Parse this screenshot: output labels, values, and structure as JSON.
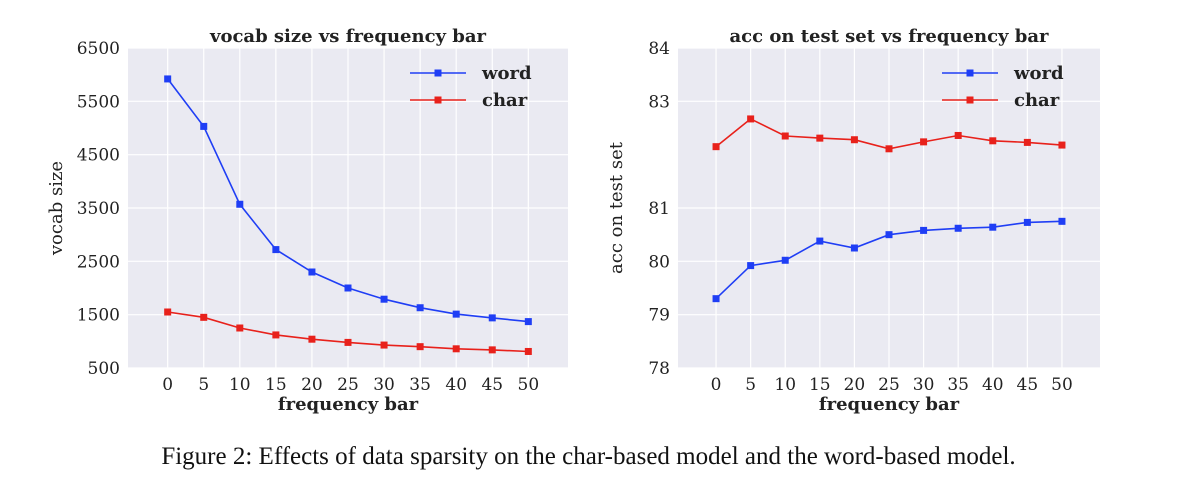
{
  "caption": "Figure 2: Effects of data sparsity on the char-based model and the word-based model.",
  "colors": {
    "word": "#1f3ef5",
    "char": "#e8211b",
    "plot_bg": "#eaeaf2",
    "grid": "#ffffff"
  },
  "chart_data": [
    {
      "type": "line",
      "title": "vocab size vs frequency bar",
      "xlabel": "frequency bar",
      "ylabel": "vocab size",
      "x": [
        0,
        5,
        10,
        15,
        20,
        25,
        30,
        35,
        40,
        45,
        50
      ],
      "xticks": [
        "0",
        "5",
        "10",
        "15",
        "20",
        "25",
        "30",
        "35",
        "40",
        "45",
        "50"
      ],
      "ylim": [
        500,
        6500
      ],
      "yticks": [
        500,
        1500,
        2500,
        3500,
        4500,
        5500,
        6500
      ],
      "ytick_labels": [
        "500",
        "1500",
        "2500",
        "3500",
        "4500",
        "5500",
        "6500"
      ],
      "grid": true,
      "legend": "top-right",
      "series": [
        {
          "name": "word",
          "color": "#1f3ef5",
          "values": [
            5920,
            5030,
            3570,
            2720,
            2300,
            2000,
            1790,
            1630,
            1510,
            1440,
            1370
          ]
        },
        {
          "name": "char",
          "color": "#e8211b",
          "values": [
            1550,
            1450,
            1250,
            1120,
            1040,
            980,
            930,
            900,
            860,
            840,
            810
          ]
        }
      ]
    },
    {
      "type": "line",
      "title": "acc on test set vs frequency bar",
      "xlabel": "frequency bar",
      "ylabel": "acc on test set",
      "x": [
        0,
        5,
        10,
        15,
        20,
        25,
        30,
        35,
        40,
        45,
        50
      ],
      "xticks": [
        "0",
        "5",
        "10",
        "15",
        "20",
        "25",
        "30",
        "35",
        "40",
        "45",
        "50"
      ],
      "ylim": [
        78,
        84
      ],
      "yticks": [
        78,
        79,
        80,
        81,
        83,
        84
      ],
      "ytick_labels": [
        "78",
        "79",
        "80",
        "81",
        "83",
        "84"
      ],
      "grid": true,
      "legend": "top-right",
      "series": [
        {
          "name": "word",
          "color": "#1f3ef5",
          "values": [
            79.3,
            79.92,
            80.02,
            80.38,
            80.25,
            80.5,
            80.58,
            80.62,
            80.64,
            80.73,
            80.75
          ]
        },
        {
          "name": "char",
          "color": "#e8211b",
          "values": [
            82.15,
            82.67,
            82.35,
            82.31,
            82.28,
            82.11,
            82.24,
            82.36,
            82.26,
            82.23,
            82.18
          ]
        }
      ]
    }
  ]
}
